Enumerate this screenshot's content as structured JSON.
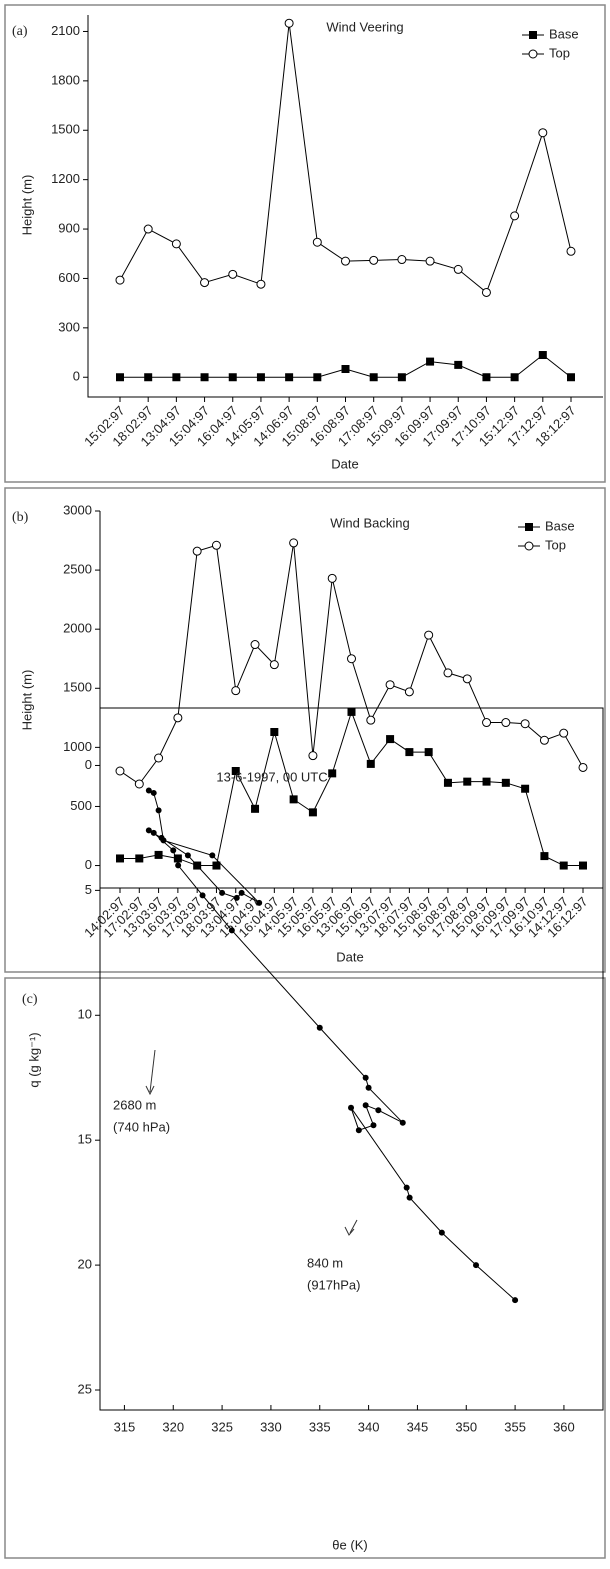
{
  "chart_data": [
    {
      "type": "line",
      "panel_label": "(a)",
      "title": "Wind Veering",
      "x_label": "Date",
      "y_label": "Height (m)",
      "categories": [
        "15:02:97",
        "18:02:97",
        "13:04:97",
        "15:04:97",
        "16:04:97",
        "14:05:97",
        "14:06:97",
        "15:08:97",
        "16:08:97",
        "17:08:97",
        "15:09:97",
        "16:09:97",
        "17:09:97",
        "17:10:97",
        "15:12:97",
        "17:12:97",
        "18:12:97"
      ],
      "series": [
        {
          "name": "Base",
          "color": "#000000",
          "marker": "square",
          "values": [
            0,
            0,
            0,
            0,
            0,
            0,
            0,
            0,
            50,
            0,
            0,
            95,
            75,
            0,
            0,
            135,
            0
          ]
        },
        {
          "name": "Top",
          "color": "#000000",
          "marker": "circle",
          "values": [
            590,
            900,
            810,
            575,
            625,
            565,
            2150,
            820,
            705,
            710,
            715,
            705,
            655,
            515,
            980,
            1485,
            765
          ]
        }
      ],
      "ylim": [
        -120,
        2200
      ],
      "yticks": [
        0,
        300,
        600,
        900,
        1200,
        1500,
        1800,
        2100
      ],
      "grid": false,
      "legend": "upper right"
    },
    {
      "type": "line",
      "panel_label": "(b)",
      "title": "Wind Backing",
      "x_label": "Date",
      "y_label": "Height (m)",
      "categories": [
        "14:02:97",
        "17:02:97",
        "13:03:97",
        "16:03:97",
        "17:03:97",
        "18:03:97",
        "13:04:97",
        "15:04:97",
        "16:04:97",
        "14:05:97",
        "15:05:97",
        "16:05:97",
        "13:06:97",
        "15:06:97",
        "13:07:97",
        "18:07:97",
        "15:08:97",
        "16:08:97",
        "17:08:97",
        "15:09:97",
        "16:09:97",
        "17:09:97",
        "16:10:97",
        "14:12:97",
        "16:12:97"
      ],
      "series": [
        {
          "name": "Base",
          "color": "#000000",
          "marker": "square",
          "values": [
            60,
            60,
            90,
            60,
            0,
            0,
            800,
            480,
            1130,
            560,
            450,
            780,
            1300,
            860,
            1070,
            960,
            960,
            700,
            710,
            710,
            700,
            650,
            80,
            0,
            0
          ]
        },
        {
          "name": "Top",
          "color": "#000000",
          "marker": "circle",
          "values": [
            800,
            690,
            910,
            1250,
            2660,
            2710,
            1480,
            1870,
            1700,
            2730,
            930,
            2430,
            1750,
            1230,
            1530,
            1470,
            1950,
            1630,
            1580,
            1210,
            1210,
            1200,
            1060,
            1120,
            830
          ]
        }
      ],
      "ylim": [
        -190,
        3000
      ],
      "yticks": [
        0,
        500,
        1000,
        1500,
        2000,
        2500,
        3000
      ],
      "grid": false,
      "legend": "upper right"
    },
    {
      "type": "scatter-line",
      "panel_label": "(c)",
      "title": "13-6-1997, 00 UTC",
      "x_label": "θe (K)",
      "y_label": "q (g kg⁻¹)",
      "x": [
        355,
        351,
        347.5,
        344.2,
        343.9,
        338.2,
        339,
        340.5,
        339.7,
        341,
        343.5,
        340,
        339.7,
        335,
        326,
        323,
        320.5,
        320,
        318,
        317.5,
        318.8,
        321.5,
        325,
        326.5,
        327,
        328.8,
        324,
        319,
        318.5,
        318,
        317.5
      ],
      "values": [
        21.4,
        20,
        18.7,
        17.3,
        16.9,
        13.7,
        14.6,
        14.4,
        13.6,
        13.8,
        14.3,
        12.9,
        12.5,
        10.5,
        6.6,
        5.2,
        4,
        3.4,
        2.7,
        2.6,
        2.9,
        3.6,
        5.1,
        5.3,
        5.1,
        5.5,
        3.6,
        3,
        1.8,
        1.1,
        1
      ],
      "color": "#000000",
      "xlim": [
        312.5,
        364
      ],
      "xticks": [
        315,
        320,
        325,
        330,
        335,
        340,
        345,
        350,
        355,
        360
      ],
      "ylim": [
        -2.3,
        25.8
      ],
      "yticks": [
        0,
        5,
        10,
        15,
        20,
        25
      ],
      "y_inverted": true,
      "grid": false,
      "annotations": [
        "2680 m",
        "(740 hPa)",
        "840 m",
        "(917hPa)"
      ]
    }
  ]
}
